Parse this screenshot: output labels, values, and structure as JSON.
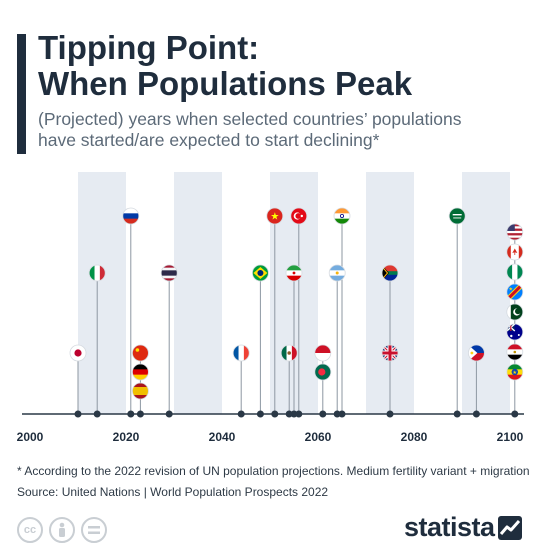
{
  "header": {
    "title_line1": "Tipping Point:",
    "title_line2": "When Populations Peak",
    "subtitle_line1": "(Projected) years when selected countries’ populations",
    "subtitle_line2": "have started/are expected to start declining*"
  },
  "footer": {
    "footnote": "* According to the 2022 revision of UN population projections. Medium fertility variant + migration",
    "source": "Source: United Nations | World Population Prospects 2022",
    "brand": "statista",
    "license_icons": [
      "creative-commons-icon",
      "attribution-icon",
      "no-derivatives-icon"
    ]
  },
  "colors": {
    "band": "#e6ebf2",
    "axis": "#2a3846",
    "node": "#2a3846",
    "stem": "#8d97a2"
  },
  "chart_data": {
    "type": "timeline",
    "xlim": [
      2000,
      2102
    ],
    "x_ticks": [
      "2000",
      "2020",
      "2040",
      "2060",
      "2080",
      "2100"
    ],
    "shaded_decades": [
      [
        2010,
        2020
      ],
      [
        2030,
        2040
      ],
      [
        2050,
        2060
      ],
      [
        2070,
        2080
      ],
      [
        2090,
        2100
      ]
    ],
    "points": [
      {
        "country": "Japan",
        "year": 2010,
        "flag": "japan-flag-icon"
      },
      {
        "country": "Italy",
        "year": 2014,
        "flag": "italy-flag-icon"
      },
      {
        "country": "Russia",
        "year": 2021,
        "flag": "russia-flag-icon"
      },
      {
        "country": "China",
        "year": 2022,
        "flag": "china-flag-icon"
      },
      {
        "country": "Germany",
        "year": 2022,
        "flag": "germany-flag-icon"
      },
      {
        "country": "Spain",
        "year": 2022,
        "flag": "spain-flag-icon"
      },
      {
        "country": "Thailand",
        "year": 2029,
        "flag": "thailand-flag-icon"
      },
      {
        "country": "France",
        "year": 2044,
        "flag": "france-flag-icon"
      },
      {
        "country": "Brazil",
        "year": 2048,
        "flag": "brazil-flag-icon"
      },
      {
        "country": "Vietnam",
        "year": 2051,
        "flag": "vietnam-flag-icon"
      },
      {
        "country": "Mexico",
        "year": 2053,
        "flag": "mexico-flag-icon"
      },
      {
        "country": "Iran",
        "year": 2055,
        "flag": "iran-flag-icon"
      },
      {
        "country": "Turkey",
        "year": 2056,
        "flag": "turkey-flag-icon"
      },
      {
        "country": "Indonesia",
        "year": 2061,
        "flag": "indonesia-flag-icon"
      },
      {
        "country": "Bangladesh",
        "year": 2061,
        "flag": "bangladesh-flag-icon"
      },
      {
        "country": "Argentina",
        "year": 2064,
        "flag": "argentina-flag-icon"
      },
      {
        "country": "India",
        "year": 2065,
        "flag": "india-flag-icon"
      },
      {
        "country": "United Kingdom",
        "year": 2075,
        "flag": "uk-flag-icon"
      },
      {
        "country": "South Africa",
        "year": 2075,
        "flag": "south-africa-flag-icon"
      },
      {
        "country": "Saudi Arabia",
        "year": 2089,
        "flag": "saudi-arabia-flag-icon"
      },
      {
        "country": "Philippines",
        "year": 2093,
        "flag": "philippines-flag-icon"
      },
      {
        "country": "United States",
        "year": 2101,
        "flag": "usa-flag-icon"
      },
      {
        "country": "Canada",
        "year": 2101,
        "flag": "canada-flag-icon"
      },
      {
        "country": "Nigeria",
        "year": 2101,
        "flag": "nigeria-flag-icon"
      },
      {
        "country": "DR Congo",
        "year": 2101,
        "flag": "dr-congo-flag-icon"
      },
      {
        "country": "Pakistan",
        "year": 2101,
        "flag": "pakistan-flag-icon"
      },
      {
        "country": "Australia",
        "year": 2101,
        "flag": "australia-flag-icon"
      },
      {
        "country": "Egypt",
        "year": 2101,
        "flag": "egypt-flag-icon"
      },
      {
        "country": "Ethiopia",
        "year": 2101,
        "flag": "ethiopia-flag-icon"
      }
    ]
  }
}
